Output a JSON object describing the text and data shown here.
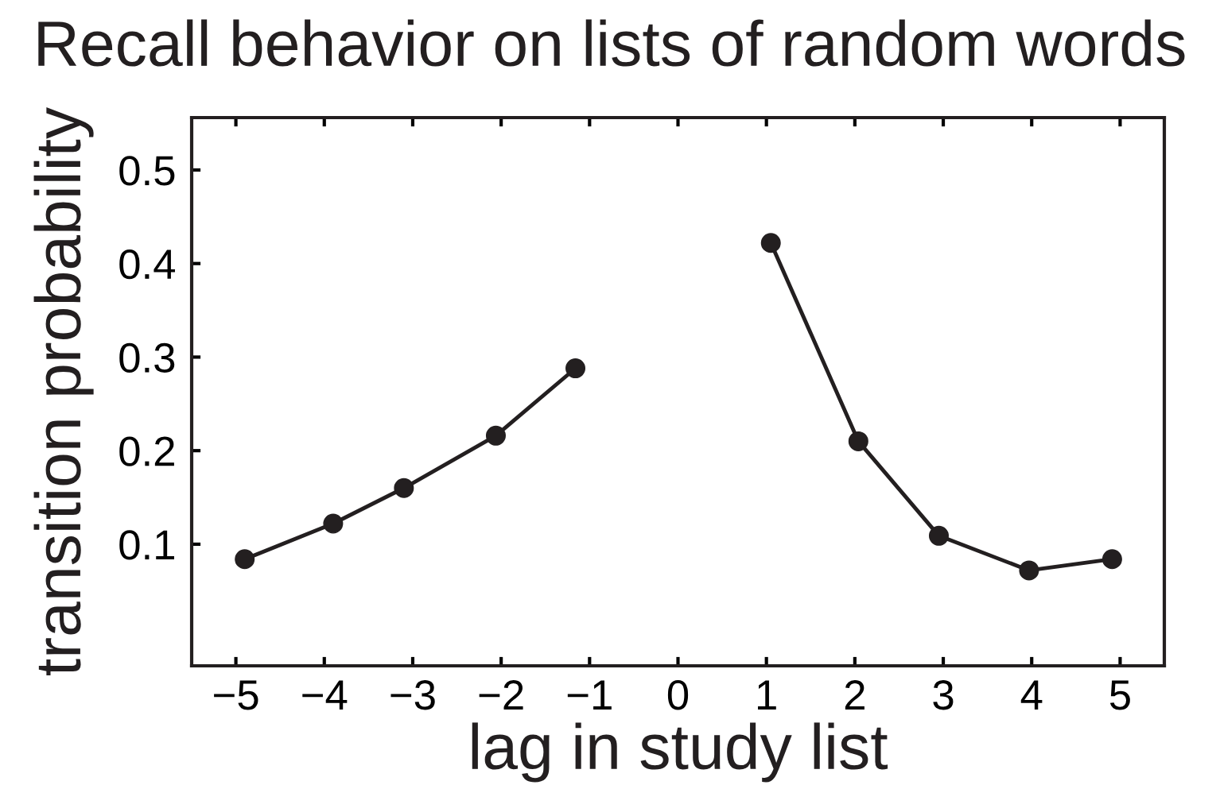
{
  "chart_data": {
    "type": "line",
    "title": "Recall behavior on lists of random words",
    "xlabel": "lag in study list",
    "ylabel": "transition probability",
    "series": [
      {
        "color": "#231f20",
        "x": [
          -4.9,
          -3.9,
          -3.1,
          -2.06,
          -1.16
        ],
        "values": [
          0.084,
          0.122,
          0.16,
          0.216,
          0.288
        ]
      },
      {
        "color": "#231f20",
        "x": [
          1.05,
          2.04,
          2.95,
          3.97,
          4.91
        ],
        "values": [
          0.422,
          0.21,
          0.109,
          0.072,
          0.084
        ]
      }
    ],
    "xlim": [
      -5.5,
      5.5
    ],
    "ylim": [
      -0.03,
      0.556
    ],
    "xticks": [
      {
        "value": -5,
        "label": "−5"
      },
      {
        "value": -4,
        "label": "−4"
      },
      {
        "value": -3,
        "label": "−3"
      },
      {
        "value": -2,
        "label": "−2"
      },
      {
        "value": -1,
        "label": "−1"
      },
      0,
      1,
      2,
      3,
      4,
      5
    ],
    "yticks": [
      0.1,
      0.2,
      0.3,
      0.4,
      0.5
    ],
    "marker": "circle",
    "line_style": "solid",
    "grid": false,
    "legend": false
  }
}
